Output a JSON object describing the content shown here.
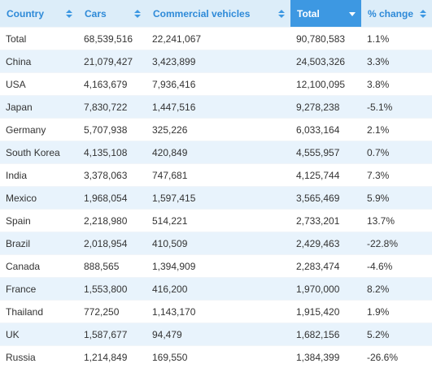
{
  "table": {
    "headers": [
      "Country",
      "Cars",
      "Commercial vehicles",
      "Total",
      "% change"
    ],
    "rows": [
      [
        "Total",
        "68,539,516",
        "22,241,067",
        "90,780,583",
        "1.1%"
      ],
      [
        "China",
        "21,079,427",
        "3,423,899",
        "24,503,326",
        "3.3%"
      ],
      [
        "USA",
        "4,163,679",
        "7,936,416",
        "12,100,095",
        "3.8%"
      ],
      [
        "Japan",
        "7,830,722",
        "1,447,516",
        "9,278,238",
        "-5.1%"
      ],
      [
        "Germany",
        "5,707,938",
        "325,226",
        "6,033,164",
        "2.1%"
      ],
      [
        "South Korea",
        "4,135,108",
        "420,849",
        "4,555,957",
        "0.7%"
      ],
      [
        "India",
        "3,378,063",
        "747,681",
        "4,125,744",
        "7.3%"
      ],
      [
        "Mexico",
        "1,968,054",
        "1,597,415",
        "3,565,469",
        "5.9%"
      ],
      [
        "Spain",
        "2,218,980",
        "514,221",
        "2,733,201",
        "13.7%"
      ],
      [
        "Brazil",
        "2,018,954",
        "410,509",
        "2,429,463",
        "-22.8%"
      ],
      [
        "Canada",
        "888,565",
        "1,394,909",
        "2,283,474",
        "-4.6%"
      ],
      [
        "France",
        "1,553,800",
        "416,200",
        "1,970,000",
        "8.2%"
      ],
      [
        "Thailand",
        "772,250",
        "1,143,170",
        "1,915,420",
        "1.9%"
      ],
      [
        "UK",
        "1,587,677",
        "94,479",
        "1,682,156",
        "5.2%"
      ],
      [
        "Russia",
        "1,214,849",
        "169,550",
        "1,384,399",
        "-26.6%"
      ]
    ]
  }
}
